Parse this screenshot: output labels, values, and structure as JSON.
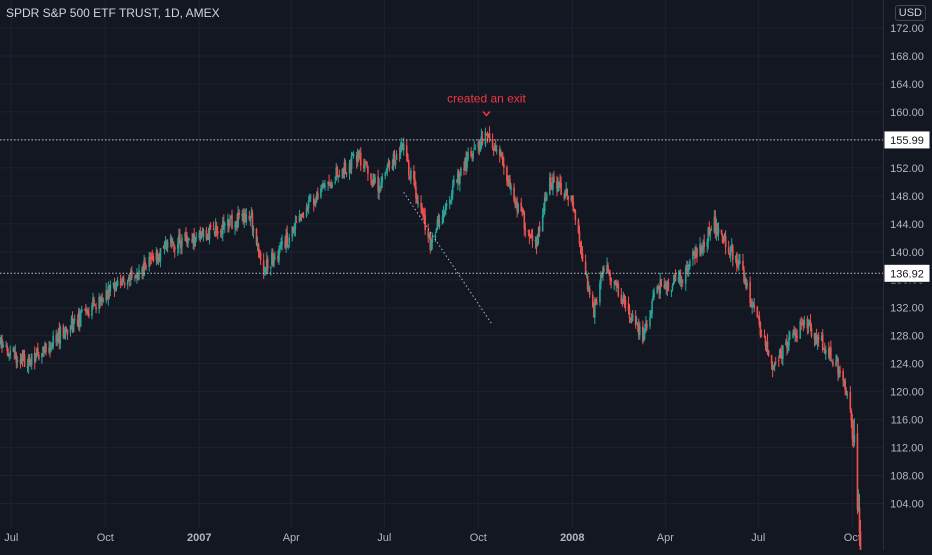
{
  "header": {
    "title": "SPDR S&P 500 ETF TRUST, 1D, AMEX",
    "currency": "USD"
  },
  "colors": {
    "background": "#131722",
    "up": "#26a69a",
    "down": "#ef5350",
    "annotation": "#f23645",
    "text": "#d1d4dc",
    "grid": "#1e222d",
    "level_line": "#d1d4dc"
  },
  "chart_data": {
    "type": "candlestick",
    "ylim": [
      100.5,
      176
    ],
    "y_ticks": [
      "104.00",
      "108.00",
      "112.00",
      "116.00",
      "120.00",
      "124.00",
      "128.00",
      "132.00",
      "136.00",
      "140.00",
      "144.00",
      "148.00",
      "152.00",
      "156.00",
      "160.00",
      "164.00",
      "168.00",
      "172.00"
    ],
    "x_ticks": [
      {
        "label": "Jul",
        "date": "2006-07-01",
        "bold": false
      },
      {
        "label": "Oct",
        "date": "2006-10-01",
        "bold": false
      },
      {
        "label": "2007",
        "date": "2007-01-01",
        "bold": true
      },
      {
        "label": "Apr",
        "date": "2007-04-01",
        "bold": false
      },
      {
        "label": "Jul",
        "date": "2007-07-01",
        "bold": false
      },
      {
        "label": "Oct",
        "date": "2007-10-01",
        "bold": false
      },
      {
        "label": "2008",
        "date": "2008-01-01",
        "bold": true
      },
      {
        "label": "Apr",
        "date": "2008-04-01",
        "bold": false
      },
      {
        "label": "Jul",
        "date": "2008-07-01",
        "bold": false
      },
      {
        "label": "Oct",
        "date": "2008-10-01",
        "bold": false
      }
    ],
    "x_range": [
      "2006-06-20",
      "2008-10-31"
    ],
    "price_path": [
      [
        "2006-06-20",
        127
      ],
      [
        "2006-07-15",
        124
      ],
      [
        "2006-08-01",
        126
      ],
      [
        "2006-09-01",
        130
      ],
      [
        "2006-10-01",
        134
      ],
      [
        "2006-11-01",
        137
      ],
      [
        "2006-12-01",
        141
      ],
      [
        "2007-01-01",
        142
      ],
      [
        "2007-02-20",
        145.5
      ],
      [
        "2007-03-05",
        137.5
      ],
      [
        "2007-03-20",
        140
      ],
      [
        "2007-04-15",
        146
      ],
      [
        "2007-05-15",
        151
      ],
      [
        "2007-06-05",
        153.5
      ],
      [
        "2007-06-25",
        149
      ],
      [
        "2007-07-18",
        155.5
      ],
      [
        "2007-08-15",
        141
      ],
      [
        "2007-08-30",
        147
      ],
      [
        "2007-09-20",
        153
      ],
      [
        "2007-10-10",
        156.5
      ],
      [
        "2007-10-25",
        153
      ],
      [
        "2007-11-12",
        145
      ],
      [
        "2007-11-27",
        141.5
      ],
      [
        "2007-12-10",
        150.5
      ],
      [
        "2007-12-31",
        147
      ],
      [
        "2008-01-22",
        131.5
      ],
      [
        "2008-02-01",
        138
      ],
      [
        "2008-03-10",
        128
      ],
      [
        "2008-03-25",
        135
      ],
      [
        "2008-04-15",
        136
      ],
      [
        "2008-05-19",
        144
      ],
      [
        "2008-06-10",
        139
      ],
      [
        "2008-07-15",
        124
      ],
      [
        "2008-08-01",
        127
      ],
      [
        "2008-08-15",
        130.5
      ],
      [
        "2008-09-05",
        126
      ],
      [
        "2008-09-20",
        123
      ],
      [
        "2008-09-30",
        116
      ],
      [
        "2008-10-05",
        109
      ],
      [
        "2008-10-10",
        92
      ]
    ],
    "levels": [
      {
        "value": 155.99,
        "label": "155.99"
      },
      {
        "value": 136.92,
        "label": "136.92"
      }
    ],
    "trendline": {
      "from": [
        "2007-07-20",
        148.5
      ],
      "to": [
        "2007-10-15",
        129.5
      ]
    },
    "annotations": [
      {
        "text": "created an exit",
        "date": "2007-10-09",
        "price": 160.2
      }
    ]
  }
}
